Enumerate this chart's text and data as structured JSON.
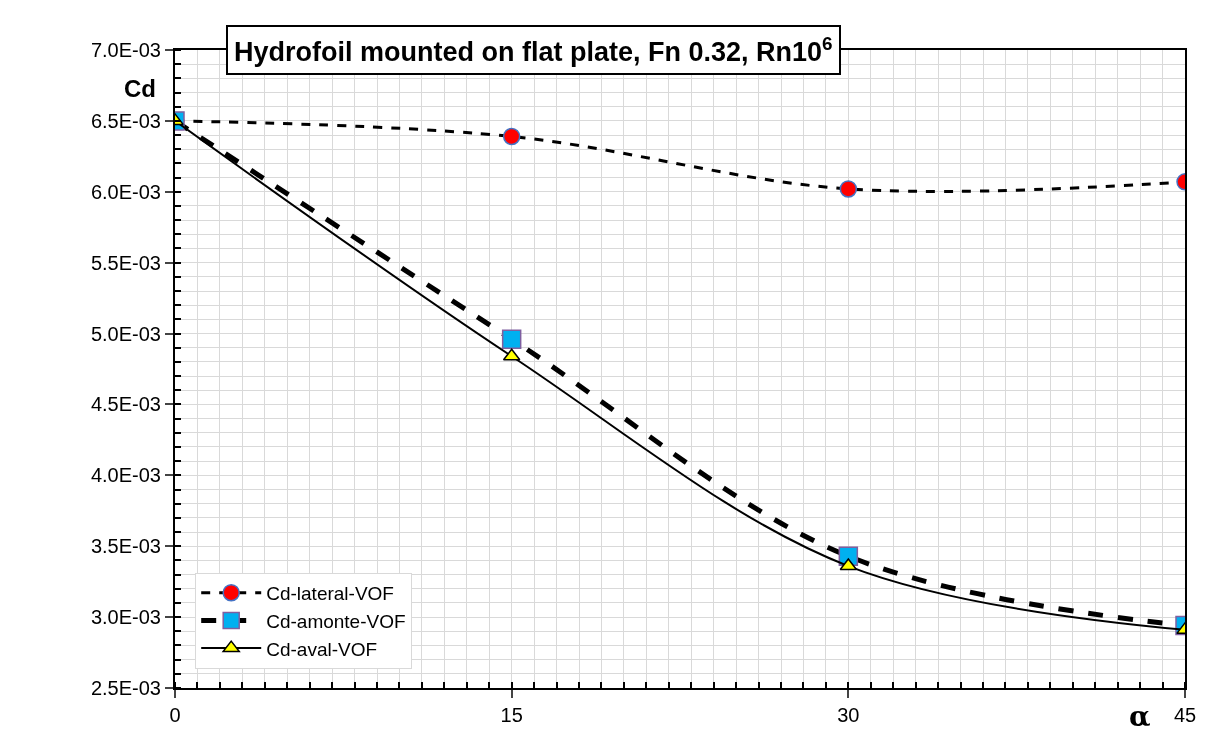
{
  "chart_data": {
    "type": "line",
    "title": "Hydrofoil mounted on flat plate, Fn 0.32, Rn10$^{6}$",
    "xlabel": "α",
    "ylabel": "Cd",
    "x": [
      0,
      15,
      30,
      45
    ],
    "xlim": [
      0,
      45
    ],
    "xticks": [
      0,
      15,
      30,
      45
    ],
    "ylim": [
      0.0025,
      0.007
    ],
    "yticks": [
      {
        "value": 0.0025,
        "label": "2.5E-03"
      },
      {
        "value": 0.003,
        "label": "3.0E-03"
      },
      {
        "value": 0.0035,
        "label": "3.5E-03"
      },
      {
        "value": 0.004,
        "label": "4.0E-03"
      },
      {
        "value": 0.0045,
        "label": "4.5E-03"
      },
      {
        "value": 0.005,
        "label": "5.0E-03"
      },
      {
        "value": 0.0055,
        "label": "5.5E-03"
      },
      {
        "value": 0.006,
        "label": "6.0E-03"
      },
      {
        "value": 0.0065,
        "label": "6.5E-03"
      },
      {
        "value": 0.007,
        "label": "7.0E-03"
      }
    ],
    "grid": true,
    "legend": "bottom left",
    "series": [
      {
        "name": "Cd-lateral-VOF",
        "color": "#ff0000",
        "marker": "circle",
        "line_style": "dashed",
        "values": [
          0.0065,
          0.00639,
          0.00602,
          0.00607
        ]
      },
      {
        "name": "Cd-amonte-VOF",
        "color": "#00b0f0",
        "marker": "square",
        "line_style": "dashed",
        "values": [
          0.0065,
          0.00496,
          0.00343,
          0.00294
        ]
      },
      {
        "name": "Cd-aval-VOF",
        "color": "#ffff00",
        "marker": "triangle",
        "line_style": "solid",
        "values": [
          0.0065,
          0.00484,
          0.00336,
          0.00291
        ]
      }
    ]
  }
}
